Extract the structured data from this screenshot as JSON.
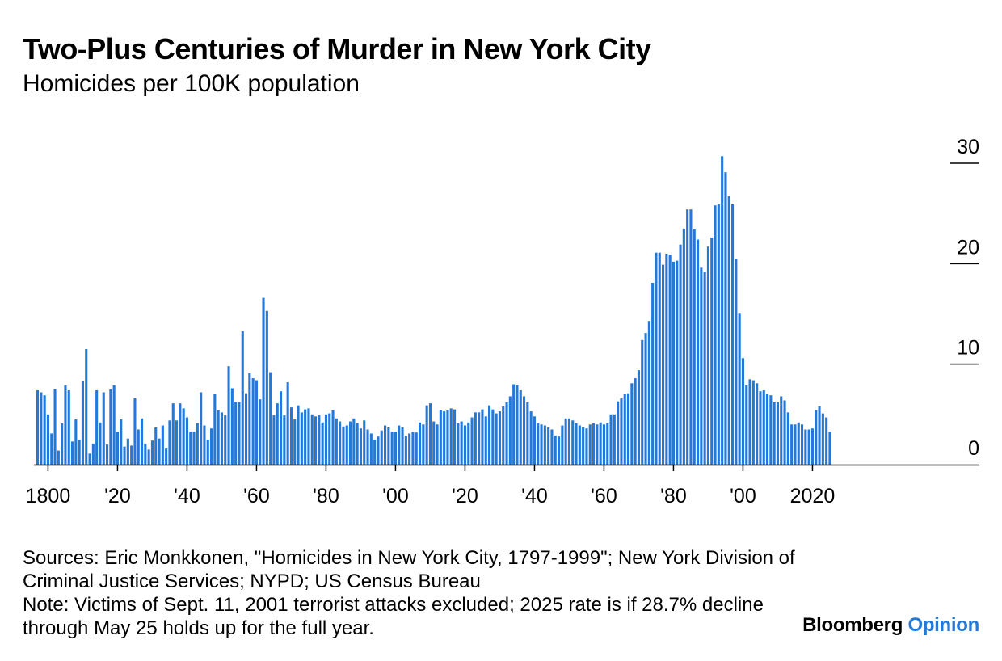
{
  "header": {
    "title": "Two-Plus Centuries of Murder in New York City",
    "subtitle": "Homicides per 100K population"
  },
  "footer": {
    "sources": "Sources: Eric Monkkonen, \"Homicides in New York City, 1797-1999\"; New York Division of Criminal Justice Services; NYPD; US Census Bureau",
    "note": "Note: Victims of Sept. 11, 2001 terrorist attacks excluded; 2025 rate is if 28.7% decline through May 25 holds up for the full year.",
    "brand_primary": "Bloomberg",
    "brand_secondary": "Opinion"
  },
  "colors": {
    "bar": "#2478d8",
    "axis": "#000000",
    "brand_accent": "#2478d8"
  },
  "chart_data": {
    "type": "bar",
    "title": "Two-Plus Centuries of Murder in New York City",
    "subtitle": "Homicides per 100K population",
    "xlabel": "",
    "ylabel": "",
    "ylim": [
      0,
      30
    ],
    "y_ticks": [
      0,
      10,
      20,
      30
    ],
    "y_tick_labels": [
      "0",
      "10",
      "20",
      "30"
    ],
    "y_axis_side": "right",
    "grid": false,
    "x_start": 1797,
    "x_end": 2025,
    "x_ticks": [
      1800,
      1820,
      1840,
      1860,
      1880,
      1900,
      1920,
      1940,
      1960,
      1980,
      2000,
      2020
    ],
    "x_tick_labels": [
      "1800",
      "'20",
      "'40",
      "'60",
      "'80",
      "'00",
      "'20",
      "'40",
      "'60",
      "'80",
      "'00",
      "2020"
    ],
    "values": [
      7.4,
      7.2,
      6.9,
      5.0,
      3.1,
      7.5,
      1.4,
      4.1,
      7.9,
      7.4,
      2.3,
      4.5,
      2.5,
      8.3,
      11.5,
      1.1,
      2.1,
      7.4,
      4.2,
      7.2,
      2.0,
      7.5,
      7.9,
      3.3,
      4.5,
      1.8,
      2.6,
      1.9,
      6.6,
      3.5,
      4.6,
      2.1,
      1.5,
      2.4,
      3.7,
      2.6,
      3.9,
      1.6,
      4.4,
      6.1,
      4.4,
      6.1,
      5.6,
      4.7,
      3.3,
      3.3,
      4.1,
      7.2,
      3.9,
      2.5,
      3.6,
      7.0,
      5.4,
      5.2,
      4.9,
      9.8,
      7.6,
      6.2,
      6.2,
      13.3,
      7.1,
      9.1,
      8.6,
      8.4,
      6.5,
      16.6,
      15.3,
      9.2,
      4.9,
      6.1,
      7.3,
      4.9,
      8.2,
      5.7,
      4.5,
      5.9,
      5.2,
      5.5,
      5.6,
      5.0,
      4.8,
      4.9,
      4.2,
      5.0,
      5.1,
      5.4,
      4.6,
      4.3,
      3.8,
      3.9,
      4.3,
      4.6,
      4.1,
      3.6,
      4.4,
      3.5,
      3.1,
      2.5,
      2.8,
      3.4,
      3.9,
      3.7,
      3.3,
      3.3,
      3.9,
      3.7,
      2.9,
      3.1,
      3.3,
      3.2,
      4.2,
      4.0,
      5.9,
      6.1,
      4.3,
      4.0,
      5.4,
      5.3,
      5.4,
      5.6,
      5.5,
      4.1,
      4.3,
      3.9,
      4.2,
      4.7,
      5.2,
      5.2,
      5.5,
      4.8,
      5.9,
      5.5,
      5.1,
      5.3,
      5.8,
      6.2,
      6.8,
      8.0,
      7.9,
      7.4,
      6.8,
      6.2,
      5.3,
      4.8,
      4.1,
      4.0,
      3.9,
      3.7,
      3.5,
      2.9,
      2.8,
      3.9,
      4.6,
      4.6,
      4.4,
      4.1,
      3.9,
      3.7,
      3.6,
      4.0,
      4.1,
      4.0,
      4.2,
      4.0,
      4.1,
      5.0,
      5.0,
      6.3,
      6.6,
      7.0,
      7.1,
      8.1,
      8.6,
      9.4,
      12.4,
      13.1,
      14.3,
      18.1,
      21.1,
      21.1,
      19.9,
      21.0,
      20.9,
      20.2,
      20.3,
      21.9,
      23.5,
      25.4,
      25.4,
      23.4,
      22.4,
      19.6,
      19.2,
      21.7,
      22.6,
      25.8,
      25.9,
      30.7,
      29.1,
      26.7,
      25.9,
      20.5,
      15.1,
      10.6,
      7.9,
      8.5,
      8.4,
      8.1,
      7.3,
      7.4,
      7.0,
      6.9,
      6.2,
      6.2,
      6.8,
      6.4,
      5.2,
      4.0,
      4.0,
      4.2,
      4.0,
      3.5,
      3.5,
      3.6,
      5.4,
      5.8,
      5.1,
      4.7,
      3.3
    ]
  }
}
